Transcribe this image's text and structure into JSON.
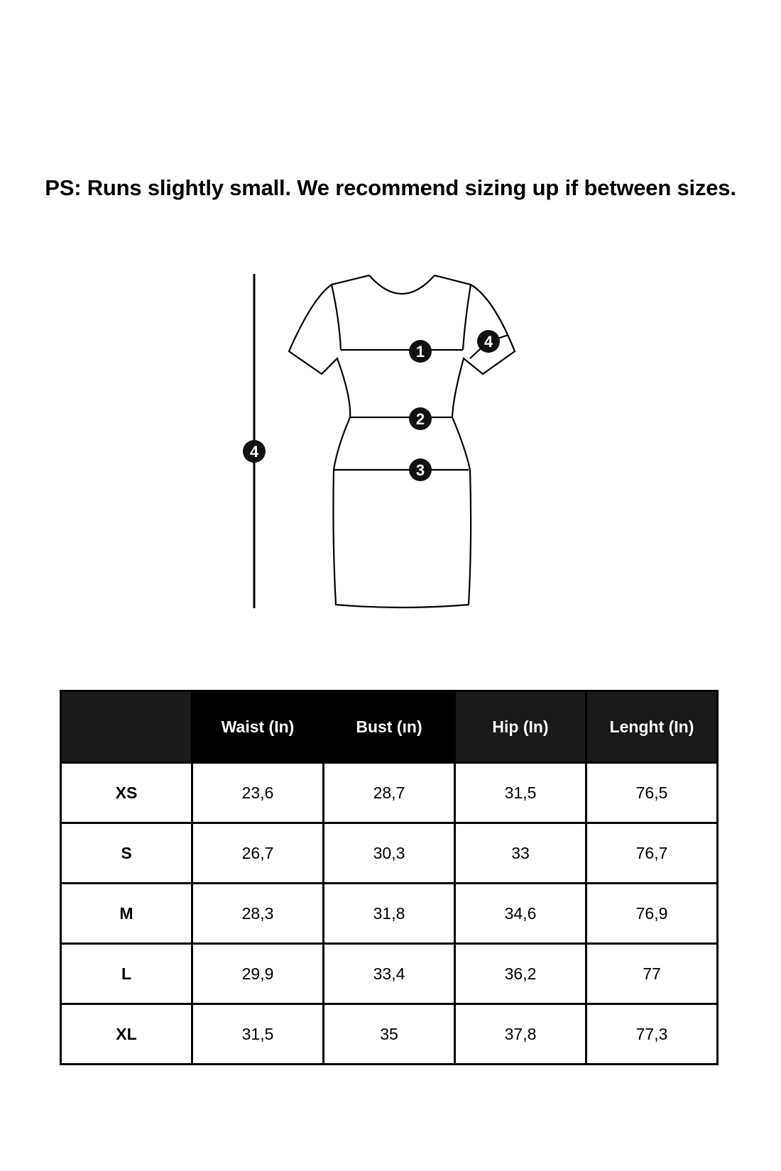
{
  "note": "PS: Runs slightly small. We recommend sizing up if between sizes.",
  "diagram": {
    "markers": {
      "bust": "1",
      "waist": "2",
      "hip": "3",
      "sleeve": "4",
      "length": "4"
    }
  },
  "table": {
    "headers": [
      "",
      "Waist (In)",
      "Bust (ın)",
      "Hip (In)",
      "Lenght (In)"
    ],
    "rows": [
      [
        "XS",
        "23,6",
        "28,7",
        "31,5",
        "76,5"
      ],
      [
        "S",
        "26,7",
        "30,3",
        "33",
        "76,7"
      ],
      [
        "M",
        "28,3",
        "31,8",
        "34,6",
        "76,9"
      ],
      [
        "L",
        "29,9",
        "33,4",
        "36,2",
        "77"
      ],
      [
        "XL",
        "31,5",
        "35",
        "37,8",
        "77,3"
      ]
    ]
  }
}
